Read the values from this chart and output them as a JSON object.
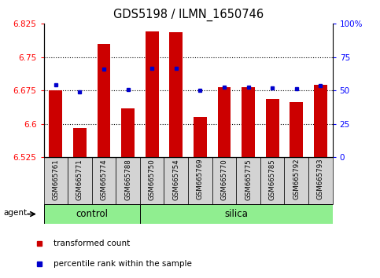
{
  "title": "GDS5198 / ILMN_1650746",
  "samples": [
    "GSM665761",
    "GSM665771",
    "GSM665774",
    "GSM665788",
    "GSM665750",
    "GSM665754",
    "GSM665769",
    "GSM665770",
    "GSM665775",
    "GSM665785",
    "GSM665792",
    "GSM665793"
  ],
  "groups": [
    "control",
    "control",
    "control",
    "control",
    "silica",
    "silica",
    "silica",
    "silica",
    "silica",
    "silica",
    "silica",
    "silica"
  ],
  "n_control": 4,
  "n_silica": 8,
  "bar_values": [
    6.675,
    6.59,
    6.78,
    6.635,
    6.808,
    6.805,
    6.615,
    6.682,
    6.682,
    6.655,
    6.648,
    6.688
  ],
  "percentile_values": [
    6.687,
    6.672,
    6.722,
    6.677,
    6.724,
    6.724,
    6.675,
    6.683,
    6.682,
    6.68,
    6.679,
    6.686
  ],
  "y_min": 6.525,
  "y_max": 6.825,
  "y_ticks": [
    6.525,
    6.6,
    6.675,
    6.75,
    6.825
  ],
  "y_tick_labels": [
    "6.525",
    "6.6",
    "6.675",
    "6.75",
    "6.825"
  ],
  "right_y_ticks": [
    0,
    25,
    50,
    75,
    100
  ],
  "right_y_tick_labels": [
    "0",
    "25",
    "50",
    "75",
    "100%"
  ],
  "grid_lines": [
    6.6,
    6.675,
    6.75
  ],
  "bar_color": "#cc0000",
  "dot_color": "#0000cc",
  "group_color": "#90ee90",
  "xlabel_bg": "#d3d3d3",
  "figsize": [
    4.83,
    3.54
  ],
  "dpi": 100
}
